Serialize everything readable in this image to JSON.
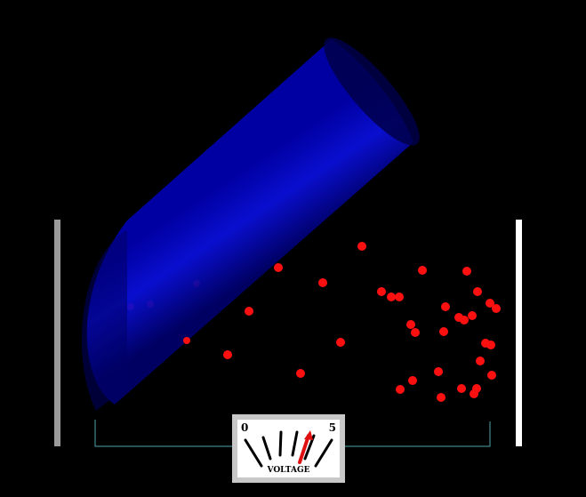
{
  "scene": {
    "left_plate_color": "#9a9a9a",
    "right_plate_color": "#ffffff",
    "wire_color": "#4fa3ad",
    "cylinder_color": "#0a10d0",
    "particle_color": "#ff1010"
  },
  "voltmeter": {
    "min_label": "0",
    "max_label": "5",
    "title": "VOLTAGE",
    "needle_color": "#e01010",
    "reading": 3.6
  }
}
